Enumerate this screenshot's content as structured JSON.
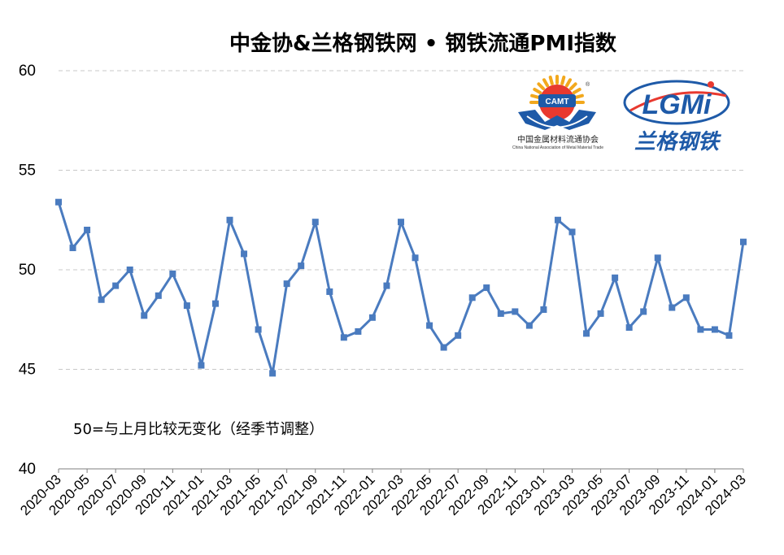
{
  "chart_data": {
    "type": "line",
    "title": "中金协&兰格钢铁网 • 钢铁流通PMI指数",
    "xlabel": "",
    "ylabel": "",
    "ylim": [
      40,
      60
    ],
    "yticks": [
      "40",
      "45",
      "50",
      "55",
      "60"
    ],
    "grid": true,
    "note": "50=与上月比较无变化（经季节调整）",
    "x_tick_labels": [
      "2020-03",
      "2020-05",
      "2020-07",
      "2020-09",
      "2020-11",
      "2021-01",
      "2021-03",
      "2021-05",
      "2021-07",
      "2021-09",
      "2021-11",
      "2022-01",
      "2022-03",
      "2022-05",
      "2022-07",
      "2022-09",
      "2022-11",
      "2023-01",
      "2023-03",
      "2023-05",
      "2023-07",
      "2023-09",
      "2023-11",
      "2024-01",
      "2024-03"
    ],
    "x": [
      "2020-03",
      "2020-04",
      "2020-05",
      "2020-06",
      "2020-07",
      "2020-08",
      "2020-09",
      "2020-10",
      "2020-11",
      "2020-12",
      "2021-01",
      "2021-02",
      "2021-03",
      "2021-04",
      "2021-05",
      "2021-06",
      "2021-07",
      "2021-08",
      "2021-09",
      "2021-10",
      "2021-11",
      "2021-12",
      "2022-01",
      "2022-02",
      "2022-03",
      "2022-04",
      "2022-05",
      "2022-06",
      "2022-07",
      "2022-08",
      "2022-09",
      "2022-10",
      "2022-11",
      "2022-12",
      "2023-01",
      "2023-02",
      "2023-03",
      "2023-04",
      "2023-05",
      "2023-06",
      "2023-07",
      "2023-08",
      "2023-09",
      "2023-10",
      "2023-11",
      "2023-12",
      "2024-01",
      "2024-02",
      "2024-03"
    ],
    "series": [
      {
        "values": [
          53.4,
          51.1,
          52.0,
          48.5,
          49.2,
          50.0,
          47.7,
          48.7,
          49.8,
          48.2,
          45.2,
          48.3,
          52.5,
          50.8,
          47.0,
          44.8,
          49.3,
          50.2,
          52.4,
          48.9,
          46.6,
          46.9,
          47.6,
          49.2,
          52.4,
          50.6,
          47.2,
          46.1,
          46.7,
          48.6,
          49.1,
          47.8,
          47.9,
          47.2,
          48.0,
          52.5,
          51.9,
          46.8,
          47.8,
          49.6,
          47.1,
          47.9,
          50.6,
          48.1,
          48.6,
          47.0,
          47.0,
          46.7,
          51.4
        ]
      }
    ],
    "colors": {
      "line": "#4a7bbf",
      "grid": "#c8c8c8"
    }
  },
  "logos": {
    "camt": {
      "badge_text": "CAMT",
      "cn_name": "中国金属材料流通协会",
      "en_name": "China National Association of Metal Material Trade"
    },
    "lgmi": {
      "mark_text": "LGMi",
      "cn_name": "兰格钢铁"
    }
  }
}
